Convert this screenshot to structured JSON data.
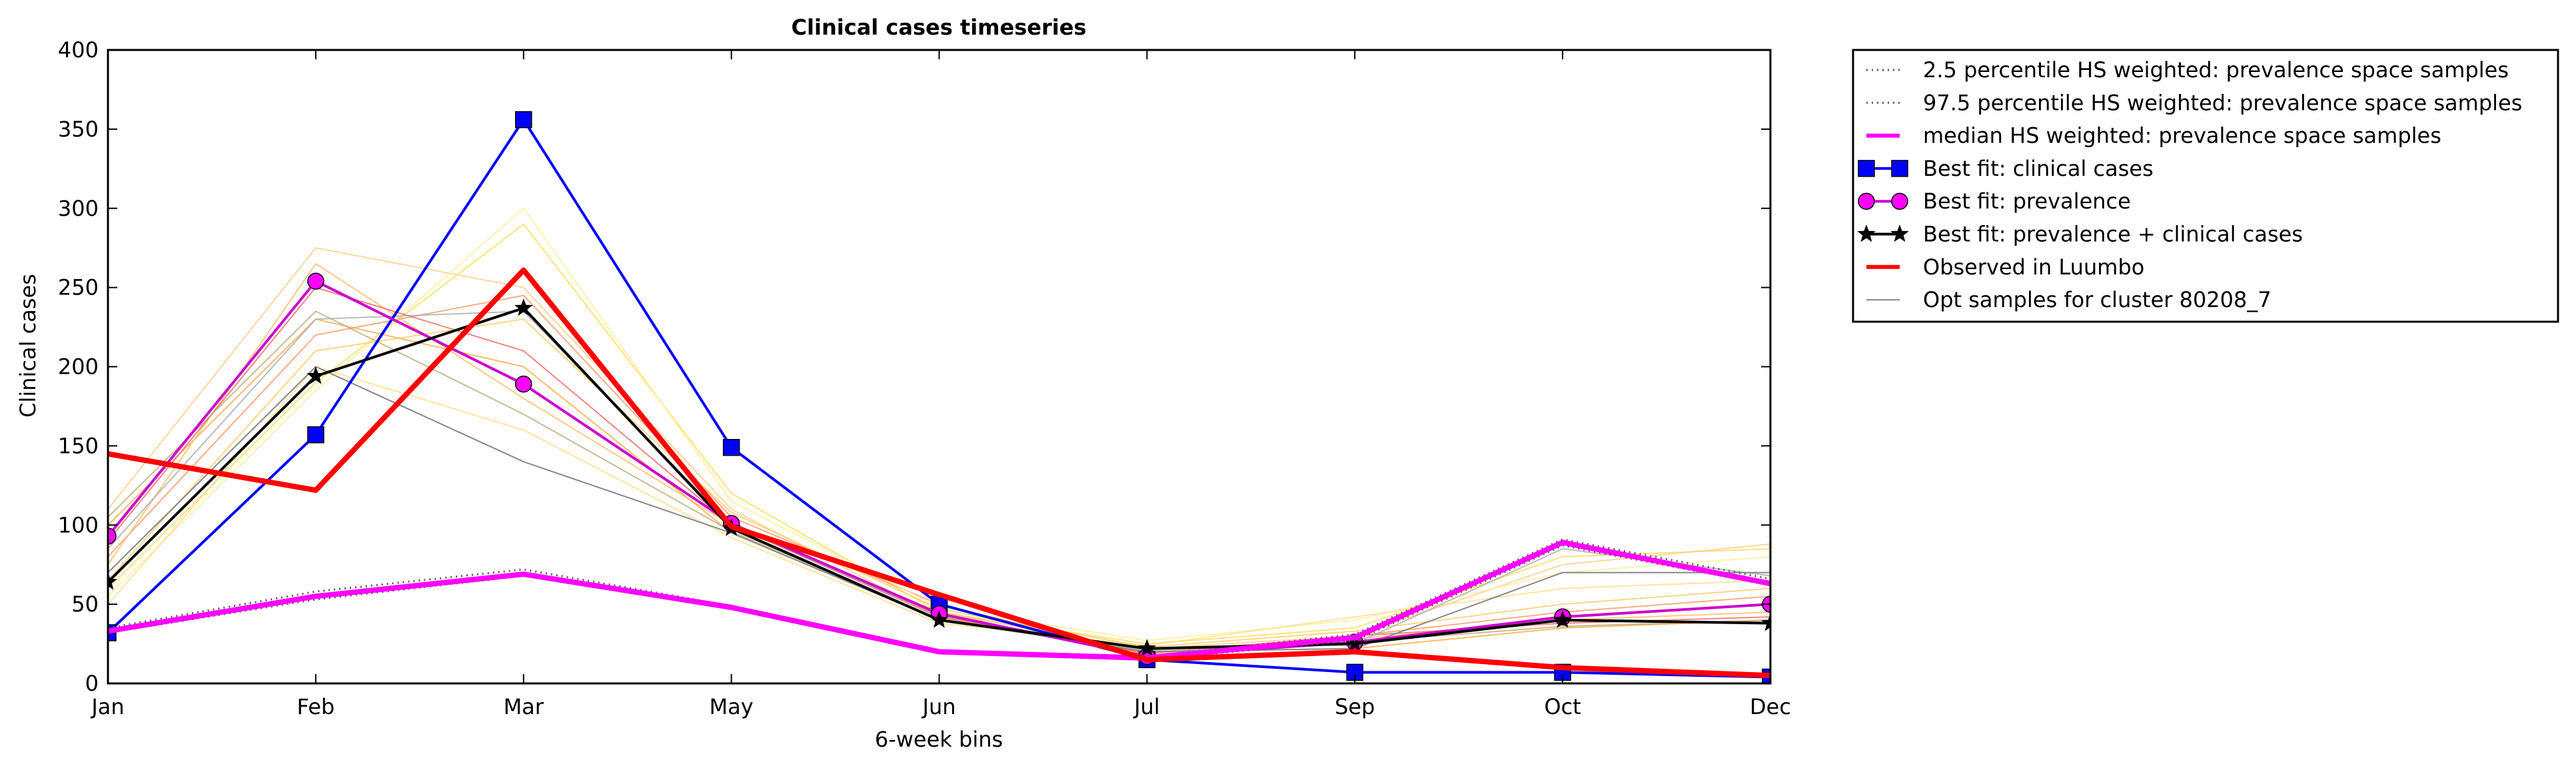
{
  "chart_data": {
    "type": "line",
    "title": "Clinical cases timeseries",
    "xlabel": "6-week bins",
    "ylabel": "Clinical cases",
    "categories": [
      "Jan",
      "Feb",
      "Mar",
      "May",
      "Jun",
      "Jul",
      "Sep",
      "Oct",
      "Dec"
    ],
    "ylim": [
      0,
      400
    ],
    "yticks": [
      0,
      50,
      100,
      150,
      200,
      250,
      300,
      350,
      400
    ],
    "grid": false,
    "legend_position": "outside-right-top",
    "series": [
      {
        "name": "2.5 percentile HS weighted: prevalence space samples",
        "style": "dotted",
        "color": "#555555",
        "values": [
          32,
          53,
          68,
          47,
          20,
          15,
          27,
          87,
          62
        ]
      },
      {
        "name": "97.5 percentile HS weighted: prevalence space samples",
        "style": "dotted",
        "color": "#555555",
        "values": [
          35,
          58,
          72,
          49,
          21,
          17,
          31,
          91,
          66
        ]
      },
      {
        "name": "median HS weighted: prevalence space samples",
        "style": "solid",
        "color": "#ff00ff",
        "values": [
          33,
          55,
          69,
          48,
          20,
          16,
          29,
          89,
          63
        ]
      },
      {
        "name": "Best fit: clinical cases",
        "style": "solid",
        "color": "#0000ff",
        "marker": "square",
        "values": [
          32,
          157,
          356,
          149,
          50,
          15,
          7,
          7,
          4
        ]
      },
      {
        "name": "Best fit: prevalence",
        "style": "solid",
        "color": "#cc00cc",
        "marker": "circle",
        "values": [
          93,
          254,
          189,
          101,
          44,
          17,
          26,
          42,
          50
        ]
      },
      {
        "name": "Best fit: prevalence + clinical cases",
        "style": "solid",
        "color": "#000000",
        "marker": "star",
        "values": [
          64,
          194,
          237,
          98,
          40,
          22,
          25,
          40,
          38
        ]
      },
      {
        "name": "Observed in Luumbo",
        "style": "solid",
        "color": "#ff0000",
        "values": [
          145,
          122,
          261,
          99,
          56,
          15,
          20,
          10,
          5
        ]
      },
      {
        "name": "Opt samples for cluster 80208_7",
        "style": "solid",
        "color": "#888888",
        "values": [
          70,
          200,
          140,
          95,
          40,
          20,
          22,
          70,
          70
        ]
      }
    ],
    "background_samples": [
      {
        "color": "#ffdd55",
        "values": [
          60,
          190,
          290,
          120,
          45,
          25,
          35,
          80,
          85
        ]
      },
      {
        "color": "#ffcc88",
        "values": [
          110,
          275,
          250,
          110,
          42,
          22,
          30,
          75,
          88
        ]
      },
      {
        "color": "#ff9966",
        "values": [
          80,
          220,
          245,
          105,
          50,
          18,
          30,
          45,
          55
        ]
      },
      {
        "color": "#ffee99",
        "values": [
          55,
          185,
          300,
          115,
          48,
          27,
          40,
          70,
          80
        ]
      },
      {
        "color": "#ffaa44",
        "values": [
          100,
          230,
          200,
          95,
          40,
          20,
          22,
          35,
          40
        ]
      },
      {
        "color": "#ffbb66",
        "values": [
          75,
          265,
          180,
          100,
          45,
          21,
          28,
          40,
          45
        ]
      },
      {
        "color": "#ee6666",
        "values": [
          90,
          250,
          210,
          100,
          42,
          19,
          30,
          38,
          42
        ]
      },
      {
        "color": "#ffdd88",
        "values": [
          50,
          200,
          160,
          92,
          38,
          24,
          42,
          60,
          65
        ]
      },
      {
        "color": "#bbaa77",
        "values": [
          105,
          235,
          170,
          96,
          41,
          21,
          26,
          36,
          40
        ]
      },
      {
        "color": "#ffcc66",
        "values": [
          65,
          210,
          230,
          108,
          47,
          23,
          33,
          50,
          60
        ]
      },
      {
        "color": "#aaaaaa",
        "values": [
          85,
          230,
          235,
          100,
          43,
          20,
          25,
          85,
          68
        ]
      }
    ]
  }
}
